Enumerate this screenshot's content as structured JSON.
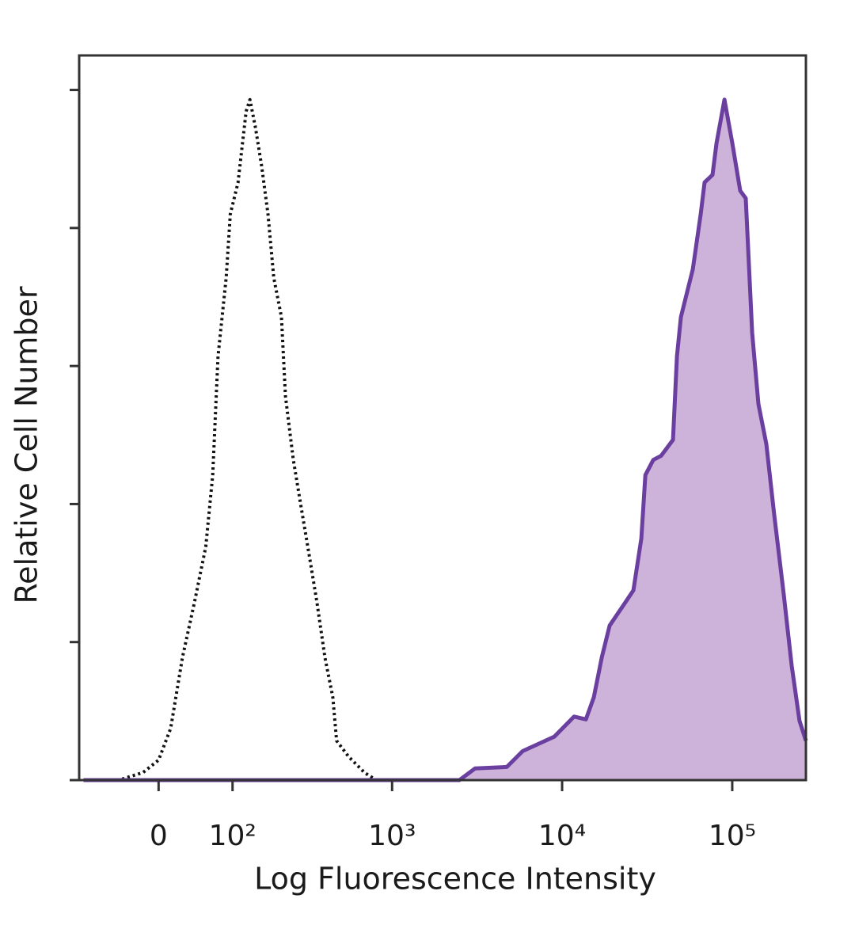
{
  "chart_data": {
    "type": "line",
    "x_label": "Log Fluorescence Intensity",
    "y_label": "Relative Cell Number",
    "xscale": "biexponential",
    "xlim": [
      -110,
      271000
    ],
    "xticks": [
      0,
      {
        "value": 100,
        "label": "10²"
      },
      {
        "value": 1000,
        "label": "10³"
      },
      {
        "value": 10000,
        "label": "10⁴"
      },
      {
        "value": 100000,
        "label": "10⁵"
      }
    ],
    "ylim": [
      0,
      105
    ],
    "yticks": [
      0,
      20,
      40,
      60,
      80,
      100
    ],
    "series": [
      {
        "color": "#111111",
        "fill": null,
        "dashed": true,
        "x": [
          -102,
          -48,
          -18,
          0,
          14,
          28,
          43,
          58,
          68,
          76,
          89,
          96,
          110,
          126,
          134,
          146,
          161,
          177,
          193,
          216,
          229,
          256,
          286,
          320,
          357,
          399,
          445,
          469,
          553,
          686,
          806
        ],
        "values": [
          0,
          0,
          1.1,
          2.9,
          7.5,
          17.8,
          25.8,
          33.8,
          44.2,
          61.4,
          72.8,
          82.0,
          86.6,
          96.9,
          98.6,
          94.6,
          88.9,
          82.0,
          72.8,
          67.1,
          55.6,
          46.5,
          39.6,
          32.7,
          25.8,
          17.8,
          12.0,
          5.7,
          3.4,
          1.1,
          0
        ]
      },
      {
        "color": "#6a3fa0",
        "fill": "#cdb3d9",
        "dashed": false,
        "x": [
          -102,
          2490,
          3080,
          4730,
          5860,
          9000,
          11760,
          13800,
          15370,
          17110,
          19040,
          23600,
          26260,
          29230,
          30850,
          34350,
          38220,
          44870,
          47310,
          49920,
          58600,
          65240,
          68800,
          76580,
          80840,
          90000,
          100100,
          111400,
          120100,
          130900,
          142500,
          158600,
          176500,
          200700,
          223400,
          248600,
          271000
        ],
        "values": [
          0,
          0,
          1.7,
          1.9,
          4.2,
          6.3,
          9.2,
          8.8,
          12.0,
          17.8,
          22.4,
          25.8,
          27.5,
          35.0,
          44.2,
          46.4,
          47.0,
          49.3,
          61.4,
          67.1,
          74.0,
          82.0,
          86.6,
          87.7,
          92.3,
          98.6,
          92.3,
          85.4,
          84.3,
          64.8,
          54.5,
          48.7,
          38.4,
          26.9,
          16.6,
          8.6,
          5.7
        ]
      }
    ]
  }
}
